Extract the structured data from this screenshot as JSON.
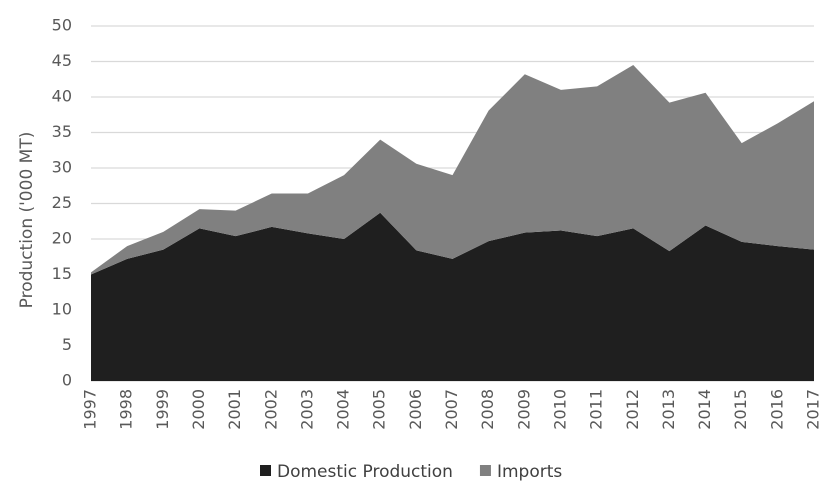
{
  "chart_data": {
    "type": "area",
    "stacked": true,
    "title": "",
    "xlabel": "",
    "ylabel": "Production ('000 MT)",
    "ylim": [
      0,
      50
    ],
    "yticks": [
      0,
      5,
      10,
      15,
      20,
      25,
      30,
      35,
      40,
      45,
      50
    ],
    "grid": "horizontal",
    "legend_position": "bottom",
    "categories": [
      "1997",
      "1998",
      "1999",
      "2000",
      "2001",
      "2002",
      "2003",
      "2004",
      "2005",
      "2006",
      "2007",
      "2008",
      "2009",
      "2010",
      "2011",
      "2012",
      "2013",
      "2014",
      "2015",
      "2016",
      "2017"
    ],
    "series": [
      {
        "name": "Domestic Production",
        "color": "#1f1f1f",
        "values": [
          15.0,
          17.2,
          18.5,
          21.5,
          20.4,
          21.7,
          20.8,
          20.0,
          23.7,
          18.4,
          17.2,
          19.7,
          20.9,
          21.2,
          20.4,
          21.5,
          18.3,
          21.9,
          19.6,
          19.0,
          18.5
        ]
      },
      {
        "name": "Imports",
        "color": "#808080",
        "values": [
          0.3,
          1.8,
          2.5,
          2.7,
          3.6,
          4.7,
          5.6,
          9.0,
          10.3,
          12.2,
          11.8,
          18.4,
          22.3,
          19.8,
          21.1,
          23.0,
          20.9,
          18.7,
          13.9,
          17.3,
          20.9
        ]
      }
    ]
  }
}
